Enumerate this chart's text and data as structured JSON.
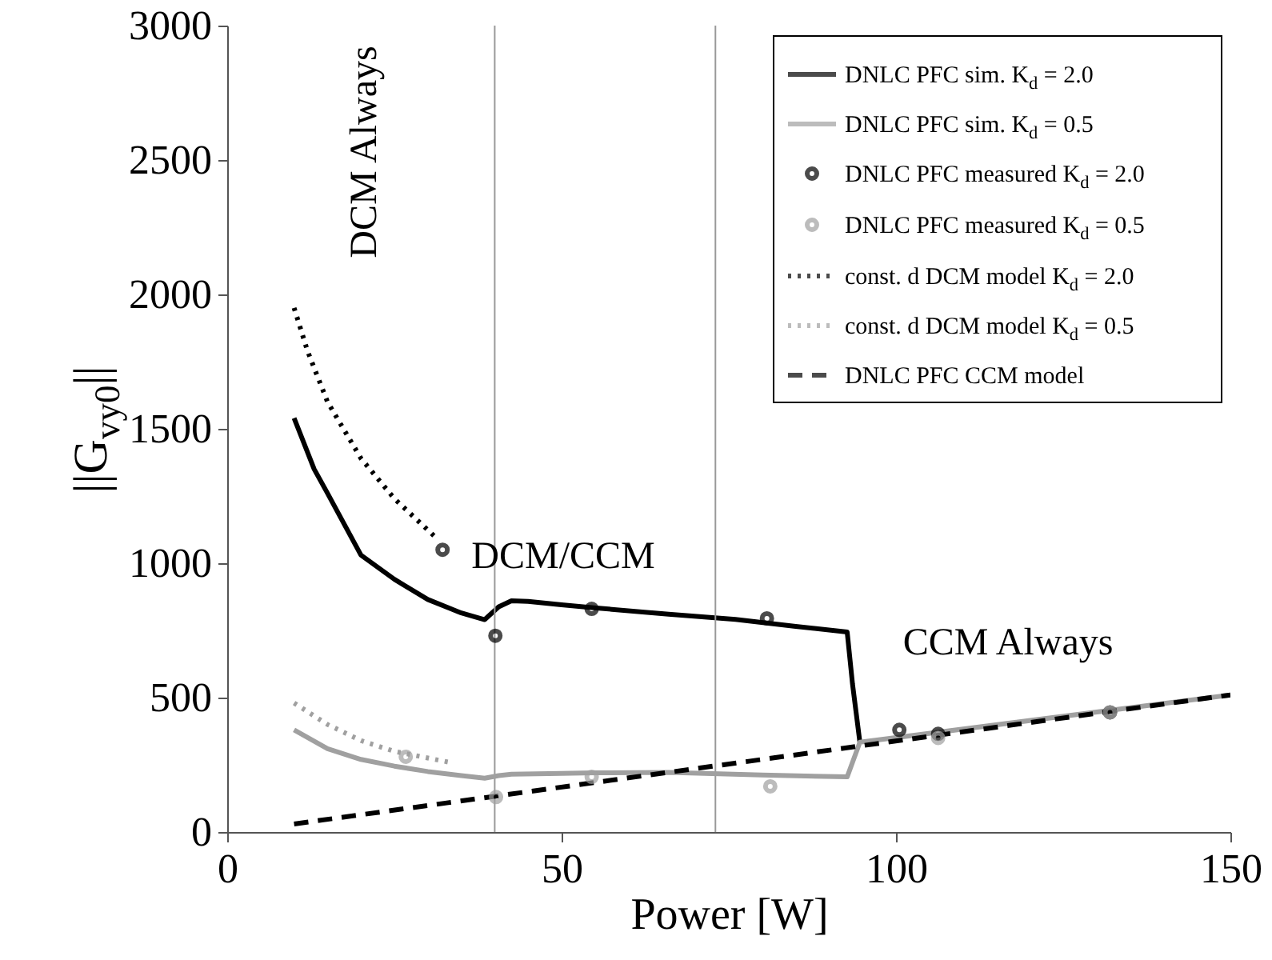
{
  "chart_data": {
    "type": "line",
    "xlabel": "Power [W]",
    "ylabel": "||G$_{vy0}$||",
    "xlim": [
      0,
      150
    ],
    "xticks": [
      0,
      50,
      100,
      150
    ],
    "ylim": [
      0,
      3000
    ],
    "yticks": [
      0,
      500,
      1000,
      1500,
      2000,
      2500,
      3000
    ],
    "grid": false,
    "legend": "top right",
    "series": [
      {
        "name": "DNLC PFC sim. K$_{d}$ = 2.0",
        "line_style": "solid",
        "color": "#000000",
        "x": [
          10,
          13,
          15,
          20,
          25,
          30,
          35,
          38.5,
          40.6,
          42.5,
          45,
          50,
          54.5,
          66,
          76,
          85,
          92.7,
          93.5,
          94.6
        ],
        "values": [
          1540,
          1350,
          1260,
          1030,
          940,
          865,
          815,
          790,
          838,
          860,
          858,
          845,
          835,
          810,
          791,
          765,
          744,
          550,
          334
        ]
      },
      {
        "name": "DNLC PFC sim. K$_{d}$ = 0.5",
        "line_style": "solid",
        "color": "#a0a0a0",
        "x": [
          10,
          15,
          20,
          25,
          30,
          35,
          38.5,
          40.6,
          42.5,
          50,
          55,
          66,
          80,
          92.7,
          94.6,
          150
        ],
        "values": [
          380,
          310,
          270,
          245,
          225,
          210,
          200,
          210,
          215,
          218,
          220,
          222,
          212,
          205,
          334,
          510
        ]
      },
      {
        "name": "DNLC PFC measured K$_{d}$ = 2.0",
        "type": "scatter",
        "marker": "circle",
        "color": "#000000",
        "x": [
          32.2,
          40.1,
          54.5,
          80.7,
          100.5,
          106.3,
          132
        ],
        "values": [
          1050,
          730,
          830,
          795,
          380,
          365,
          445
        ]
      },
      {
        "name": "DNLC PFC measured K$_{d}$ = 0.5",
        "type": "scatter",
        "marker": "circle",
        "color": "#a0a0a0",
        "x": [
          26.7,
          40.2,
          54.5,
          81.2,
          106.3,
          132
        ],
        "values": [
          280,
          130,
          205,
          170,
          350,
          445
        ]
      },
      {
        "name": "const. d DCM model K$_{d}$ = 2.0",
        "line_style": "dotted",
        "color": "#000000",
        "x": [
          10,
          12,
          15,
          20,
          25,
          31
        ],
        "values": [
          1950,
          1790,
          1600,
          1390,
          1240,
          1100
        ]
      },
      {
        "name": "const. d DCM model K$_{d}$ = 0.5",
        "line_style": "dotted",
        "color": "#a0a0a0",
        "x": [
          10,
          15,
          20,
          25,
          33.5
        ],
        "values": [
          480,
          400,
          340,
          300,
          258
        ]
      },
      {
        "name": "DNLC PFC CCM model",
        "line_style": "dashed",
        "color": "#000000",
        "x": [
          10,
          150
        ],
        "values": [
          30,
          510
        ]
      }
    ],
    "ref_lines": [
      {
        "axis": "x",
        "value": 40,
        "color": "#999999"
      },
      {
        "axis": "x",
        "value": 73,
        "color": "#999999"
      }
    ],
    "annotations": [
      "DCM Always",
      "DCM/CCM",
      "CCM Always"
    ]
  }
}
